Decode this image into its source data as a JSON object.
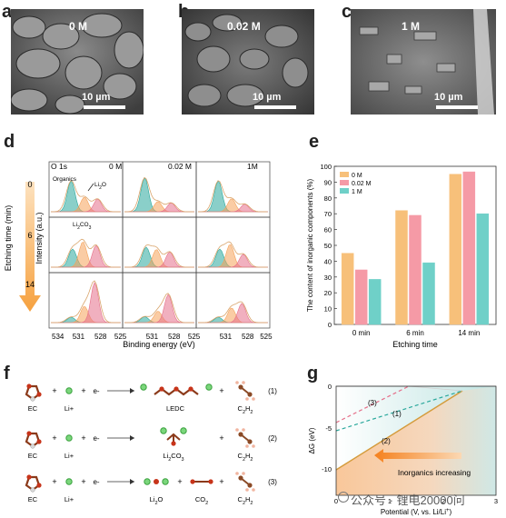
{
  "panels": {
    "a": {
      "letter": "a",
      "condition": "0 M",
      "scale": "10 µm"
    },
    "b": {
      "letter": "b",
      "condition": "0.02 M",
      "scale": "10 µm"
    },
    "c": {
      "letter": "c",
      "condition": "1 M",
      "scale": "10 µm"
    },
    "d": {
      "letter": "d",
      "etch_axis_label": "Etching time (min)",
      "etch_ticks": [
        "0",
        "6",
        "14"
      ],
      "intensity_label": "Intensity (a.u.)",
      "xlabel": "Binding energy (eV)",
      "xticks": [
        "534",
        "531",
        "528",
        "525"
      ],
      "o1s_label": "O 1s",
      "conditions": [
        "0 M",
        "0.02 M",
        "1M"
      ],
      "annotations": {
        "organics": "Organics",
        "li2o": "Li2O",
        "li2co3": "Li2CO3"
      }
    },
    "f": {
      "letter": "f",
      "reactions": [
        {
          "reactant": "EC",
          "ion": "Li+",
          "electron": "e-",
          "product": "LEDC",
          "gas": "C2H2",
          "number": "(1)"
        },
        {
          "reactant": "EC",
          "ion": "Li+",
          "electron": "e-",
          "product": "Li2CO3",
          "gas": "C2H2",
          "number": "(2)"
        },
        {
          "reactant": "EC",
          "ion": "Li+",
          "electron": "e-",
          "product": "Li2O",
          "product2": "CO2",
          "gas": "C2H2",
          "number": "(3)"
        }
      ]
    },
    "g": {
      "letter": "g",
      "ylabel": "ΔG (eV)",
      "xlabel": "Potential (V, vs. Li/Li+)",
      "yticks": [
        "0",
        "-5",
        "-10"
      ],
      "xticks": [
        "0",
        "1",
        "2",
        "3"
      ],
      "line_labels": [
        "(3)",
        "(1)",
        "(2)"
      ],
      "arrow_text": "Inorganics increasing"
    }
  },
  "chart_data": [
    {
      "type": "bar",
      "title": "",
      "xlabel": "Etching time",
      "ylabel": "The content of inorganic components (%)",
      "categories": [
        "0 min",
        "6 min",
        "14 min"
      ],
      "ylim": [
        0,
        100
      ],
      "yticks": [
        0,
        10,
        20,
        30,
        40,
        50,
        60,
        70,
        80,
        90,
        100
      ],
      "legend_position": "top-left",
      "series": [
        {
          "name": "0 M",
          "color": "#f7c07a",
          "values": [
            45,
            72,
            95
          ]
        },
        {
          "name": "0.02 M",
          "color": "#f59aa6",
          "values": [
            34.5,
            69,
            96.5
          ]
        },
        {
          "name": "1 M",
          "color": "#6fd0c8",
          "values": [
            28.5,
            39,
            70
          ]
        }
      ]
    }
  ],
  "watermark": "公众号 · 锂电20000问"
}
